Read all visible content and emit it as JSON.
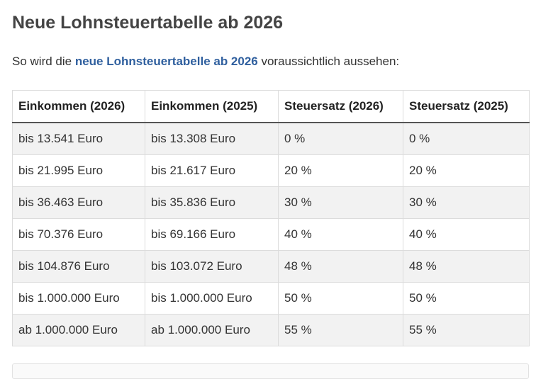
{
  "page": {
    "title": "Neue Lohnsteuertabelle ab 2026"
  },
  "intro": {
    "prefix": "So wird die ",
    "link_text": "neue Lohnsteuertabelle ab 2026",
    "suffix": " voraussichtlich aussehen:",
    "link_color": "#2f5f9e"
  },
  "table": {
    "headers": [
      "Einkommen (2026)",
      "Einkommen (2025)",
      "Steuersatz (2026)",
      "Steuersatz (2025)"
    ],
    "rows": [
      [
        "bis 13.541 Euro",
        "bis 13.308 Euro",
        "0 %",
        "0 %"
      ],
      [
        "bis 21.995 Euro",
        "bis 21.617 Euro",
        "20 %",
        "20 %"
      ],
      [
        "bis 36.463 Euro",
        "bis 35.836 Euro",
        "30 %",
        "30 %"
      ],
      [
        "bis 70.376 Euro",
        "bis 69.166 Euro",
        "40 %",
        "40 %"
      ],
      [
        "bis 104.876 Euro",
        "bis 103.072 Euro",
        "48 %",
        "48 %"
      ],
      [
        "bis 1.000.000 Euro",
        "bis 1.000.000 Euro",
        "50 %",
        "50 %"
      ],
      [
        "ab 1.000.000 Euro",
        "ab 1.000.000 Euro",
        "55 %",
        "55 %"
      ]
    ]
  }
}
